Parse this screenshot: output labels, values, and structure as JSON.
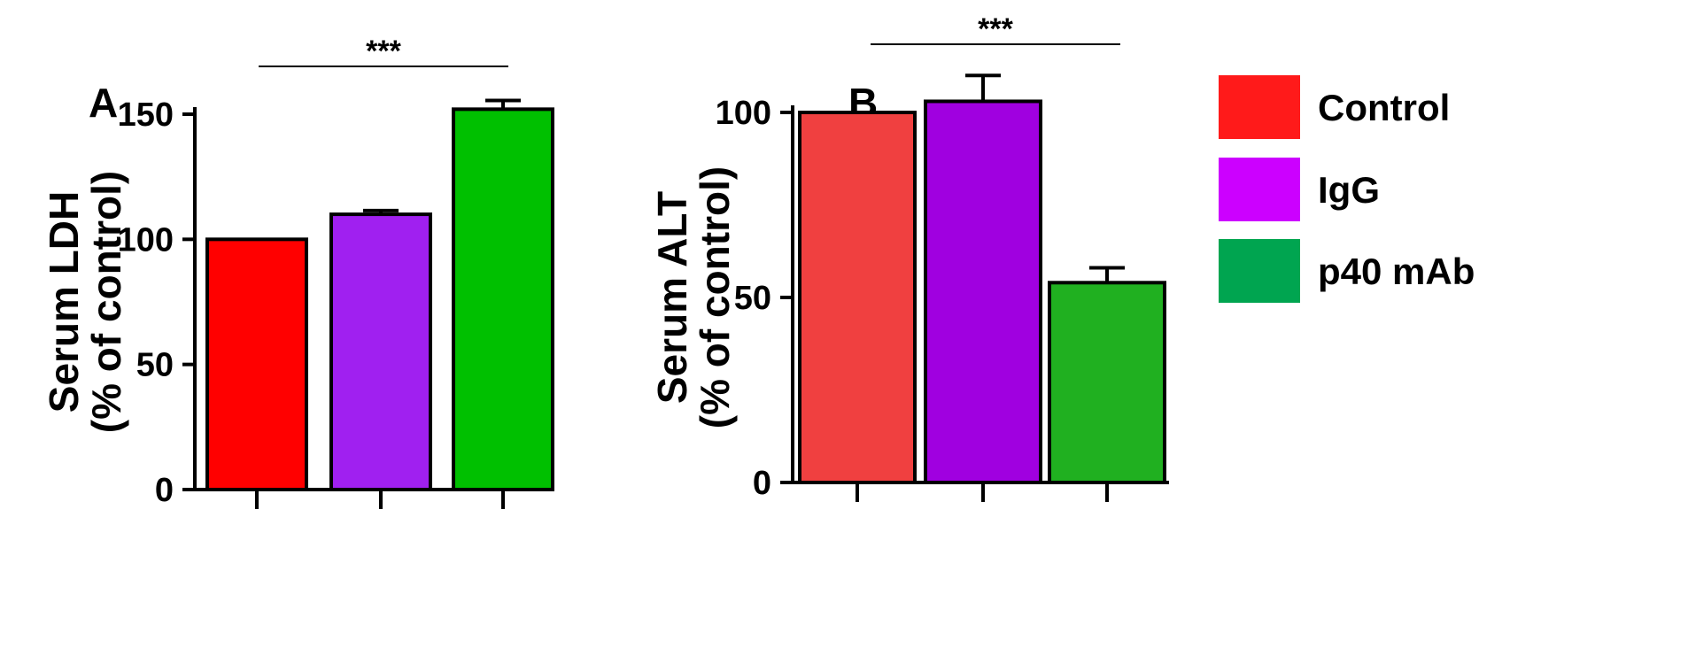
{
  "figure": {
    "panel_a_letter": "A",
    "panel_b_letter": "B"
  },
  "legend": [
    {
      "label": "Control",
      "color": "#ff1a1a"
    },
    {
      "label": "IgG",
      "color": "#cc00ff"
    },
    {
      "label": "p40 mAb",
      "color": "#00a550"
    }
  ],
  "chart_data": [
    {
      "type": "bar",
      "panel": "A",
      "categories": [
        "Control",
        "IgG",
        "p40 mAb"
      ],
      "values": [
        100,
        110,
        152
      ],
      "errors": [
        0,
        1.5,
        3.5
      ],
      "colors": [
        "#ff0000",
        "#a020f0",
        "#00c000"
      ],
      "title": "",
      "xlabel": "",
      "ylabel_line1": "Serum LDH",
      "ylabel_line2": "(% of control)",
      "ylim": [
        0,
        150
      ],
      "yticks": [
        0,
        50,
        100,
        150
      ],
      "significance": {
        "label": "***",
        "from": "Control",
        "to": "p40 mAb"
      }
    },
    {
      "type": "bar",
      "panel": "B",
      "categories": [
        "Control",
        "IgG",
        "p40 mAb"
      ],
      "values": [
        100,
        103,
        54
      ],
      "errors": [
        0,
        7,
        4
      ],
      "colors": [
        "#f04040",
        "#a000e0",
        "#20b020"
      ],
      "title": "",
      "xlabel": "",
      "ylabel_line1": "Serum ALT",
      "ylabel_line2": "(% of control)",
      "ylim": [
        0,
        100
      ],
      "yticks": [
        0,
        50,
        100
      ],
      "significance": {
        "label": "***",
        "from": "Control",
        "to": "p40 mAb"
      }
    }
  ]
}
